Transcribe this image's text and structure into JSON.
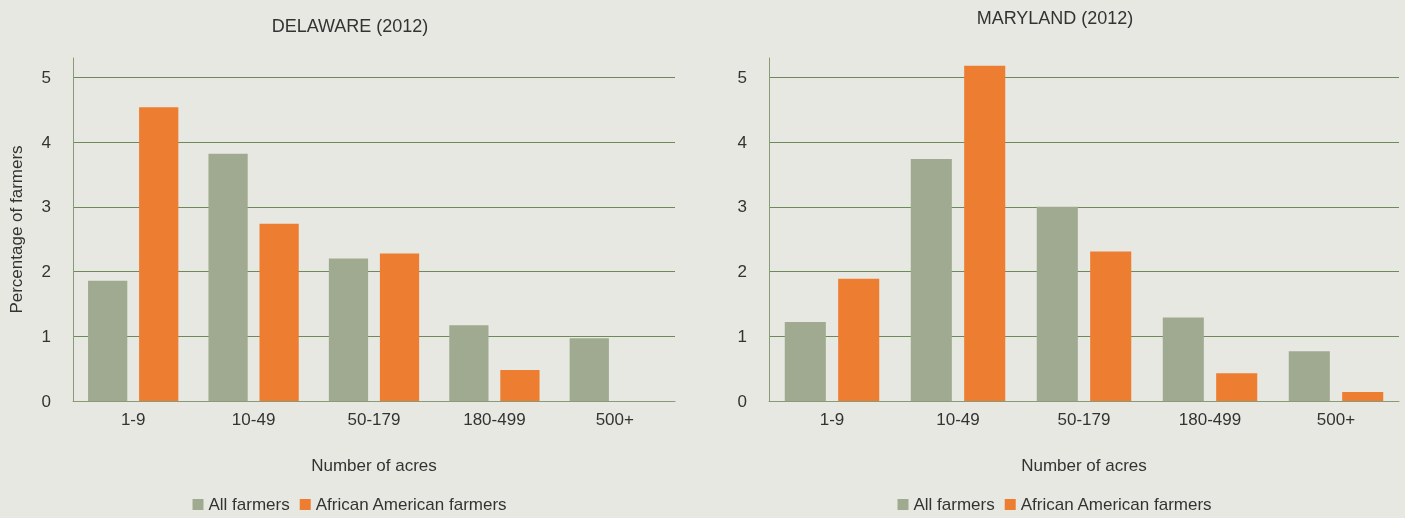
{
  "chart_data": [
    {
      "type": "bar",
      "title": "DELAWARE (2012)",
      "xlabel": "Number of acres",
      "ylabel": "Percentage of farmers",
      "categories": [
        "1-9",
        "10-49",
        "50-179",
        "180-499",
        "500+"
      ],
      "series": [
        {
          "name": "All farmers",
          "color": "#a0aa90",
          "values": [
            1.86,
            3.82,
            2.2,
            1.17,
            0.97
          ]
        },
        {
          "name": "African American farmers",
          "color": "#ed7d31",
          "values": [
            4.54,
            2.74,
            2.28,
            0.48,
            0
          ]
        }
      ],
      "ylim": [
        0,
        5.3
      ],
      "yticks": [
        0,
        1,
        2,
        3,
        4,
        5
      ],
      "grid": "y",
      "legend": "bottom"
    },
    {
      "type": "bar",
      "title": "MARYLAND (2012)",
      "xlabel": "Number of acres",
      "categories": [
        "1-9",
        "10-49",
        "50-179",
        "180-499",
        "500+"
      ],
      "series": [
        {
          "name": "All farmers",
          "color": "#a0aa90",
          "values": [
            1.22,
            3.74,
            3.0,
            1.29,
            0.77
          ]
        },
        {
          "name": "African American farmers",
          "color": "#ed7d31",
          "values": [
            1.89,
            5.18,
            2.31,
            0.43,
            0.14
          ]
        }
      ],
      "ylim": [
        0,
        5.3
      ],
      "yticks": [
        0,
        1,
        2,
        3,
        4,
        5
      ],
      "grid": "y",
      "legend": "bottom"
    }
  ]
}
